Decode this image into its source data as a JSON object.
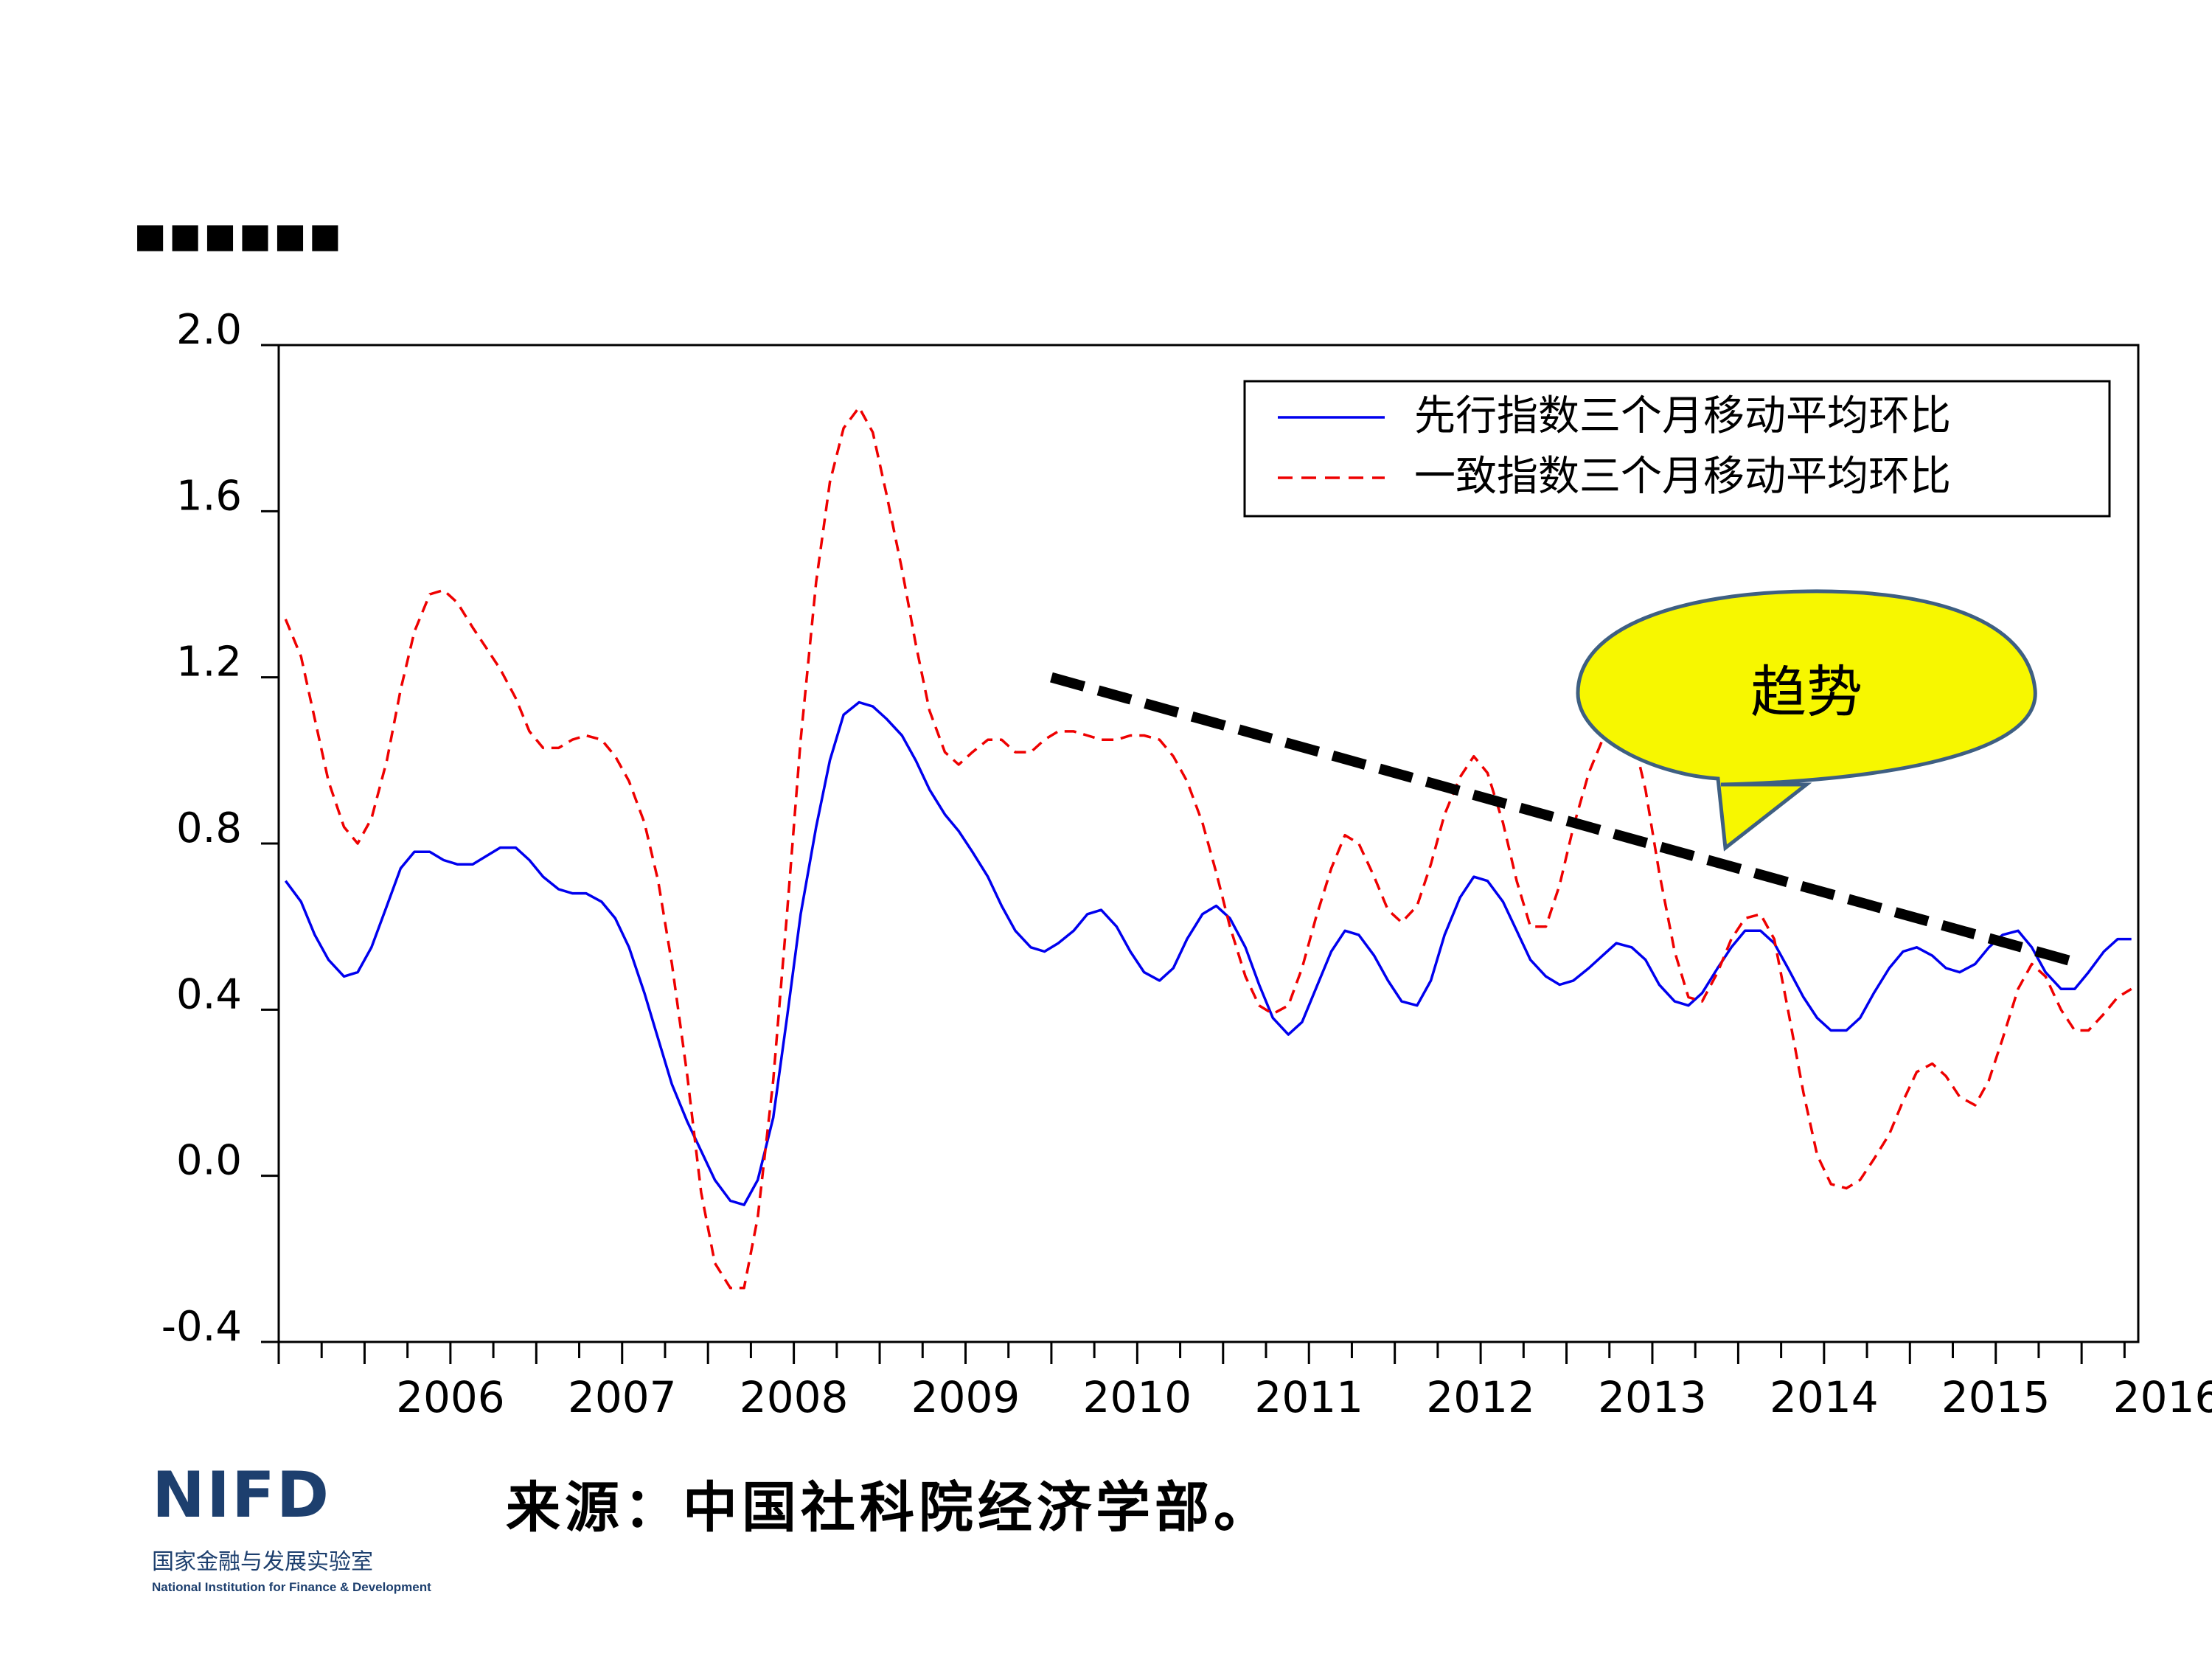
{
  "slide": {
    "title_dots": "■■■■■■",
    "source_text": "来源：中国社科院经济学部。"
  },
  "logo": {
    "mark": "NIFD",
    "cn_name": "国家金融与发展实验室",
    "en_name": "National Institution for Finance & Development"
  },
  "colors": {
    "leading": "#0000ee",
    "coincident": "#ee0000",
    "trend": "#000000",
    "callout_fill": "#f7f700",
    "callout_stroke": "#3e5f82"
  },
  "chart_data": {
    "type": "line",
    "title": "",
    "xlabel": "",
    "ylabel": "",
    "ylim": [
      -0.4,
      2.0
    ],
    "yticks": [
      "-0.4",
      "0.0",
      "0.4",
      "0.8",
      "1.2",
      "1.6",
      "2.0"
    ],
    "ytick_values": [
      -0.4,
      0.0,
      0.4,
      0.8,
      1.2,
      1.6,
      2.0
    ],
    "xlim": [
      2005.5,
      2016.33
    ],
    "year_labels": [
      "2006",
      "2007",
      "2008",
      "2009",
      "2010",
      "2011",
      "2012",
      "2013",
      "2014",
      "2015",
      "2016"
    ],
    "legend_position": "top-right",
    "series": [
      {
        "name": "先行指数三个月移动平均环比",
        "style": "solid",
        "points": [
          [
            2005.54,
            0.71
          ],
          [
            2005.63,
            0.66
          ],
          [
            2005.71,
            0.58
          ],
          [
            2005.79,
            0.52
          ],
          [
            2005.88,
            0.48
          ],
          [
            2005.96,
            0.49
          ],
          [
            2006.04,
            0.55
          ],
          [
            2006.13,
            0.65
          ],
          [
            2006.21,
            0.74
          ],
          [
            2006.29,
            0.78
          ],
          [
            2006.38,
            0.78
          ],
          [
            2006.46,
            0.76
          ],
          [
            2006.54,
            0.75
          ],
          [
            2006.63,
            0.75
          ],
          [
            2006.71,
            0.77
          ],
          [
            2006.79,
            0.79
          ],
          [
            2006.88,
            0.79
          ],
          [
            2006.96,
            0.76
          ],
          [
            2007.04,
            0.72
          ],
          [
            2007.13,
            0.69
          ],
          [
            2007.21,
            0.68
          ],
          [
            2007.29,
            0.68
          ],
          [
            2007.38,
            0.66
          ],
          [
            2007.46,
            0.62
          ],
          [
            2007.54,
            0.55
          ],
          [
            2007.63,
            0.44
          ],
          [
            2007.71,
            0.33
          ],
          [
            2007.79,
            0.22
          ],
          [
            2007.88,
            0.13
          ],
          [
            2007.96,
            0.06
          ],
          [
            2008.04,
            -0.01
          ],
          [
            2008.13,
            -0.06
          ],
          [
            2008.21,
            -0.07
          ],
          [
            2008.29,
            -0.01
          ],
          [
            2008.38,
            0.14
          ],
          [
            2008.46,
            0.38
          ],
          [
            2008.54,
            0.63
          ],
          [
            2008.63,
            0.84
          ],
          [
            2008.71,
            1.0
          ],
          [
            2008.79,
            1.11
          ],
          [
            2008.88,
            1.14
          ],
          [
            2008.96,
            1.13
          ],
          [
            2009.04,
            1.1
          ],
          [
            2009.13,
            1.06
          ],
          [
            2009.21,
            1.0
          ],
          [
            2009.29,
            0.93
          ],
          [
            2009.38,
            0.87
          ],
          [
            2009.46,
            0.83
          ],
          [
            2009.54,
            0.78
          ],
          [
            2009.63,
            0.72
          ],
          [
            2009.71,
            0.65
          ],
          [
            2009.79,
            0.59
          ],
          [
            2009.88,
            0.55
          ],
          [
            2009.96,
            0.54
          ],
          [
            2010.04,
            0.56
          ],
          [
            2010.13,
            0.59
          ],
          [
            2010.21,
            0.63
          ],
          [
            2010.29,
            0.64
          ],
          [
            2010.38,
            0.6
          ],
          [
            2010.46,
            0.54
          ],
          [
            2010.54,
            0.49
          ],
          [
            2010.63,
            0.47
          ],
          [
            2010.71,
            0.5
          ],
          [
            2010.79,
            0.57
          ],
          [
            2010.88,
            0.63
          ],
          [
            2010.96,
            0.65
          ],
          [
            2011.04,
            0.62
          ],
          [
            2011.13,
            0.55
          ],
          [
            2011.21,
            0.46
          ],
          [
            2011.29,
            0.38
          ],
          [
            2011.38,
            0.34
          ],
          [
            2011.46,
            0.37
          ],
          [
            2011.54,
            0.45
          ],
          [
            2011.63,
            0.54
          ],
          [
            2011.71,
            0.59
          ],
          [
            2011.79,
            0.58
          ],
          [
            2011.88,
            0.53
          ],
          [
            2011.96,
            0.47
          ],
          [
            2012.04,
            0.42
          ],
          [
            2012.13,
            0.41
          ],
          [
            2012.21,
            0.47
          ],
          [
            2012.29,
            0.58
          ],
          [
            2012.38,
            0.67
          ],
          [
            2012.46,
            0.72
          ],
          [
            2012.54,
            0.71
          ],
          [
            2012.63,
            0.66
          ],
          [
            2012.71,
            0.59
          ],
          [
            2012.79,
            0.52
          ],
          [
            2012.88,
            0.48
          ],
          [
            2012.96,
            0.46
          ],
          [
            2013.04,
            0.47
          ],
          [
            2013.13,
            0.5
          ],
          [
            2013.21,
            0.53
          ],
          [
            2013.29,
            0.56
          ],
          [
            2013.38,
            0.55
          ],
          [
            2013.46,
            0.52
          ],
          [
            2013.54,
            0.46
          ],
          [
            2013.63,
            0.42
          ],
          [
            2013.71,
            0.41
          ],
          [
            2013.79,
            0.44
          ],
          [
            2013.88,
            0.5
          ],
          [
            2013.96,
            0.55
          ],
          [
            2014.04,
            0.59
          ],
          [
            2014.13,
            0.59
          ],
          [
            2014.21,
            0.56
          ],
          [
            2014.29,
            0.5
          ],
          [
            2014.38,
            0.43
          ],
          [
            2014.46,
            0.38
          ],
          [
            2014.54,
            0.35
          ],
          [
            2014.63,
            0.35
          ],
          [
            2014.71,
            0.38
          ],
          [
            2014.79,
            0.44
          ],
          [
            2014.88,
            0.5
          ],
          [
            2014.96,
            0.54
          ],
          [
            2015.04,
            0.55
          ],
          [
            2015.13,
            0.53
          ],
          [
            2015.21,
            0.5
          ],
          [
            2015.29,
            0.49
          ],
          [
            2015.38,
            0.51
          ],
          [
            2015.46,
            0.55
          ],
          [
            2015.54,
            0.58
          ],
          [
            2015.63,
            0.59
          ],
          [
            2015.71,
            0.55
          ],
          [
            2015.79,
            0.49
          ],
          [
            2015.88,
            0.45
          ],
          [
            2015.96,
            0.45
          ],
          [
            2016.04,
            0.49
          ],
          [
            2016.13,
            0.54
          ],
          [
            2016.21,
            0.57
          ],
          [
            2016.29,
            0.57
          ]
        ]
      },
      {
        "name": "一致指数三个月移动平均环比",
        "style": "dashed",
        "points": [
          [
            2005.54,
            1.34
          ],
          [
            2005.63,
            1.25
          ],
          [
            2005.71,
            1.1
          ],
          [
            2005.79,
            0.95
          ],
          [
            2005.88,
            0.84
          ],
          [
            2005.96,
            0.8
          ],
          [
            2006.04,
            0.86
          ],
          [
            2006.13,
            1.0
          ],
          [
            2006.21,
            1.17
          ],
          [
            2006.29,
            1.31
          ],
          [
            2006.38,
            1.4
          ],
          [
            2006.46,
            1.41
          ],
          [
            2006.54,
            1.38
          ],
          [
            2006.63,
            1.32
          ],
          [
            2006.71,
            1.27
          ],
          [
            2006.79,
            1.22
          ],
          [
            2006.88,
            1.15
          ],
          [
            2006.96,
            1.07
          ],
          [
            2007.04,
            1.03
          ],
          [
            2007.13,
            1.03
          ],
          [
            2007.21,
            1.05
          ],
          [
            2007.29,
            1.06
          ],
          [
            2007.38,
            1.05
          ],
          [
            2007.46,
            1.01
          ],
          [
            2007.54,
            0.95
          ],
          [
            2007.63,
            0.85
          ],
          [
            2007.71,
            0.71
          ],
          [
            2007.79,
            0.51
          ],
          [
            2007.88,
            0.24
          ],
          [
            2007.96,
            -0.04
          ],
          [
            2008.04,
            -0.21
          ],
          [
            2008.13,
            -0.27
          ],
          [
            2008.21,
            -0.27
          ],
          [
            2008.29,
            -0.1
          ],
          [
            2008.38,
            0.23
          ],
          [
            2008.46,
            0.63
          ],
          [
            2008.54,
            1.05
          ],
          [
            2008.63,
            1.43
          ],
          [
            2008.71,
            1.67
          ],
          [
            2008.79,
            1.8
          ],
          [
            2008.88,
            1.85
          ],
          [
            2008.96,
            1.79
          ],
          [
            2009.04,
            1.64
          ],
          [
            2009.13,
            1.46
          ],
          [
            2009.21,
            1.28
          ],
          [
            2009.29,
            1.12
          ],
          [
            2009.38,
            1.02
          ],
          [
            2009.46,
            0.99
          ],
          [
            2009.54,
            1.02
          ],
          [
            2009.63,
            1.05
          ],
          [
            2009.71,
            1.05
          ],
          [
            2009.79,
            1.02
          ],
          [
            2009.88,
            1.02
          ],
          [
            2009.96,
            1.05
          ],
          [
            2010.04,
            1.07
          ],
          [
            2010.13,
            1.07
          ],
          [
            2010.21,
            1.06
          ],
          [
            2010.29,
            1.05
          ],
          [
            2010.38,
            1.05
          ],
          [
            2010.46,
            1.06
          ],
          [
            2010.54,
            1.06
          ],
          [
            2010.63,
            1.05
          ],
          [
            2010.71,
            1.01
          ],
          [
            2010.79,
            0.95
          ],
          [
            2010.88,
            0.85
          ],
          [
            2010.96,
            0.73
          ],
          [
            2011.04,
            0.6
          ],
          [
            2011.13,
            0.48
          ],
          [
            2011.21,
            0.41
          ],
          [
            2011.29,
            0.39
          ],
          [
            2011.38,
            0.41
          ],
          [
            2011.46,
            0.5
          ],
          [
            2011.54,
            0.62
          ],
          [
            2011.63,
            0.74
          ],
          [
            2011.71,
            0.82
          ],
          [
            2011.79,
            0.8
          ],
          [
            2011.88,
            0.72
          ],
          [
            2011.96,
            0.64
          ],
          [
            2012.04,
            0.61
          ],
          [
            2012.13,
            0.65
          ],
          [
            2012.21,
            0.75
          ],
          [
            2012.29,
            0.87
          ],
          [
            2012.38,
            0.96
          ],
          [
            2012.46,
            1.01
          ],
          [
            2012.54,
            0.97
          ],
          [
            2012.63,
            0.85
          ],
          [
            2012.71,
            0.71
          ],
          [
            2012.79,
            0.6
          ],
          [
            2012.88,
            0.6
          ],
          [
            2012.96,
            0.7
          ],
          [
            2013.04,
            0.84
          ],
          [
            2013.13,
            0.97
          ],
          [
            2013.21,
            1.05
          ],
          [
            2013.29,
            1.1
          ],
          [
            2013.38,
            1.07
          ],
          [
            2013.46,
            0.93
          ],
          [
            2013.54,
            0.73
          ],
          [
            2013.63,
            0.54
          ],
          [
            2013.71,
            0.43
          ],
          [
            2013.79,
            0.42
          ],
          [
            2013.88,
            0.49
          ],
          [
            2013.96,
            0.57
          ],
          [
            2014.04,
            0.62
          ],
          [
            2014.13,
            0.63
          ],
          [
            2014.21,
            0.57
          ],
          [
            2014.29,
            0.4
          ],
          [
            2014.38,
            0.2
          ],
          [
            2014.46,
            0.05
          ],
          [
            2014.54,
            -0.02
          ],
          [
            2014.63,
            -0.03
          ],
          [
            2014.71,
            -0.01
          ],
          [
            2014.79,
            0.04
          ],
          [
            2014.88,
            0.1
          ],
          [
            2014.96,
            0.18
          ],
          [
            2015.04,
            0.25
          ],
          [
            2015.13,
            0.27
          ],
          [
            2015.21,
            0.24
          ],
          [
            2015.29,
            0.19
          ],
          [
            2015.38,
            0.17
          ],
          [
            2015.46,
            0.23
          ],
          [
            2015.54,
            0.33
          ],
          [
            2015.63,
            0.45
          ],
          [
            2015.71,
            0.51
          ],
          [
            2015.79,
            0.48
          ],
          [
            2015.88,
            0.4
          ],
          [
            2015.96,
            0.35
          ],
          [
            2016.04,
            0.35
          ],
          [
            2016.13,
            0.39
          ],
          [
            2016.21,
            0.43
          ],
          [
            2016.29,
            0.45
          ]
        ]
      }
    ],
    "annotations": {
      "trend_line": {
        "from": [
          2010.0,
          1.2
        ],
        "to": [
          2016.0,
          0.51
        ]
      },
      "callout_text": "趋势"
    }
  }
}
